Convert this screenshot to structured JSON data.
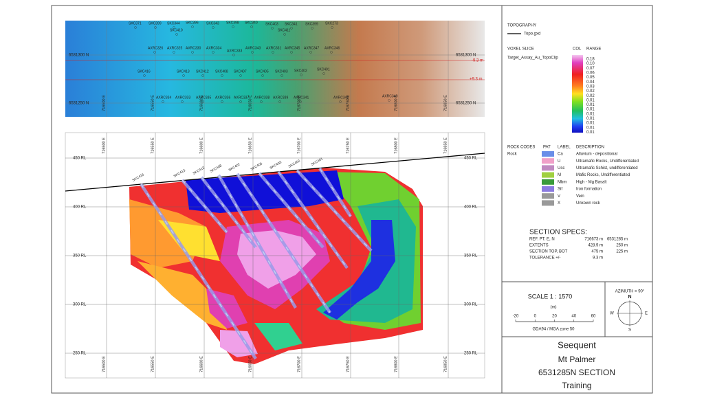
{
  "plan": {
    "holes": [
      "SKC371",
      "SKC399",
      "SKC344",
      "SKC396",
      "SKC343",
      "SKC398",
      "SKC340",
      "SKC403",
      "SKC341",
      "SKC399",
      "SKC273",
      "SKC410",
      "SKC411",
      "AXRC326",
      "AXRC325",
      "AXRC330",
      "AXRC334",
      "AXRC333",
      "AXRC343",
      "AXRC331",
      "AXRC345",
      "AXRC347",
      "AXRC346",
      "SKC416",
      "SKC413",
      "SKC412",
      "SKC408",
      "SKC407",
      "SKC405",
      "SKC403",
      "SKC402",
      "SKC401",
      "AXRC334",
      "AXRC333",
      "AXRC335",
      "AXRC336",
      "AXRC337",
      "AXRC338",
      "AXRC339",
      "AXRC341",
      "AXRC342",
      "AXRC349"
    ],
    "northings": [
      "6531300 N",
      "6531250 N"
    ],
    "offsets": [
      "-9.3 m",
      "+9.3 m"
    ],
    "eastings": [
      "716500 E",
      "716550 E",
      "716600 E",
      "716650 E",
      "716700 E",
      "716750 E",
      "716800 E",
      "716850 E"
    ]
  },
  "section": {
    "eastings": [
      "716500 E",
      "716550 E",
      "716600 E",
      "716650 E",
      "716700 E",
      "716750 E",
      "716800 E",
      "716850 E"
    ],
    "rls": [
      "450 RL",
      "400 RL",
      "350 RL",
      "300 RL",
      "250 RL"
    ],
    "holes": [
      "SKC416",
      "SKC413",
      "SKC412",
      "SKC408",
      "SKC407",
      "SKC405",
      "SKC403",
      "SKC402",
      "SKC401"
    ]
  },
  "legend": {
    "topography_title": "TOPOGRAPHY",
    "topo_item": "Topo.gxd",
    "voxel_title": "VOXEL SLICE",
    "voxel_name": "Target_Assay_Au_TopoClip",
    "col_header": "COL",
    "range_header": "RANGE",
    "range_values": [
      "0.18",
      "0.10",
      "0.07",
      "0.06",
      "0.05",
      "0.04",
      "0.03",
      "0.02",
      "0.02",
      "0.01",
      "0.01",
      "0.01",
      "0.01",
      "0.01",
      "0.01",
      "0.01",
      "0.01"
    ]
  },
  "rock_codes": {
    "headers": [
      "ROCK CODES",
      "PAT",
      "LABEL",
      "DESCRIPTION"
    ],
    "group": "Rock",
    "rows": [
      [
        "Ca",
        "Alluvium - depositional"
      ],
      [
        "U",
        "Ultramafic Rocks, Undifferentiated"
      ],
      [
        "Usc",
        "Ultramafic Schist, undifferentiated"
      ],
      [
        "M",
        "Mafic Rocks, Undifferentiated"
      ],
      [
        "Mbm",
        "High - Mg Basalt"
      ],
      [
        "Sif",
        "Iron formation"
      ],
      [
        "V",
        "Vein"
      ],
      [
        "X",
        "Unkown rock"
      ]
    ]
  },
  "section_specs": {
    "title": "SECTION SPECS:",
    "rows": [
      [
        "REF. PT. E, N",
        "716673 m",
        "6531285 m"
      ],
      [
        "EXTENTS",
        "428.9 m",
        "250 m"
      ],
      [
        "SECTION TOP, BOT",
        "475 m",
        "225 m"
      ],
      [
        "TOLERANCE +/-",
        "9.3 m"
      ]
    ]
  },
  "scale": {
    "title": "SCALE  1 : 1570",
    "unit": "(m)",
    "ticks": [
      "-20",
      "0",
      "20",
      "40",
      "60"
    ],
    "datum": "GDA94 / MGA zone 50"
  },
  "azimuth": {
    "title": "AZIMUTH = 90°",
    "n": "N",
    "w": "W",
    "e": "E",
    "s": "S"
  },
  "title_block": [
    "Seequent",
    "Mt Palmer",
    "6531285N  SECTION",
    "Training"
  ]
}
